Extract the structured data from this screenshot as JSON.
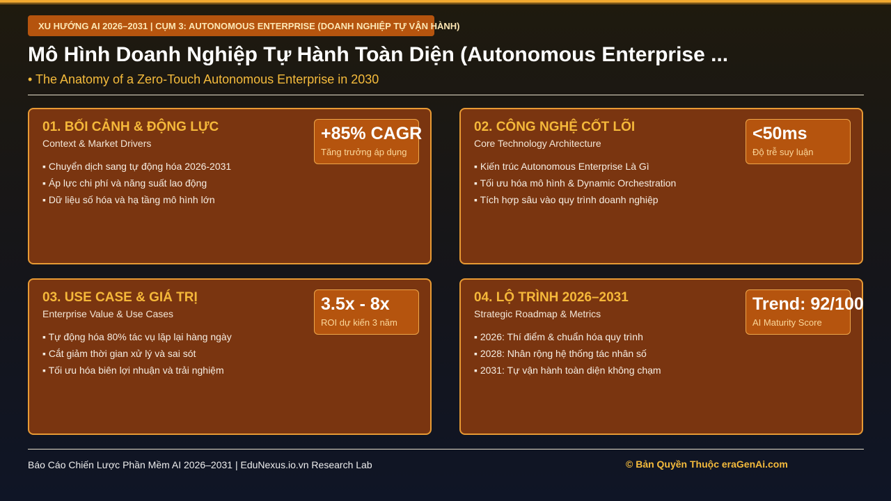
{
  "header": {
    "tag": "XU HƯỚNG AI 2026–2031 | CỤM 3: AUTONOMOUS ENTERPRISE (DOANH NGHIỆP TỰ VẬN HÀNH)",
    "title": "Mô Hình Doanh Nghiệp Tự Hành Toàn Diện (Autonomous Enterprise ...",
    "subtitle": "• The Anatomy of a Zero-Touch Autonomous Enterprise in 2030"
  },
  "cards": [
    {
      "title": "01. BỐI CẢNH & ĐỘNG LỰC",
      "subtitle": "Context & Market Drivers",
      "bullets": [
        "▪ Chuyển dịch sang tự động hóa 2026-2031",
        "▪ Áp lực chi phí và năng suất lao động",
        "▪ Dữ liệu số hóa và hạ tầng mô hình lớn"
      ],
      "metric_value": "+85% CAGR",
      "metric_label": "Tăng trưởng áp dụng"
    },
    {
      "title": "02. CÔNG NGHỆ CỐT LÕI",
      "subtitle": "Core Technology Architecture",
      "bullets": [
        "▪ Kiến trúc Autonomous Enterprise Là Gì",
        "▪ Tối ưu hóa mô hình & Dynamic Orchestration",
        "▪ Tích hợp sâu vào quy trình doanh nghiệp"
      ],
      "metric_value": "<50ms",
      "metric_label": "Độ trễ suy luận"
    },
    {
      "title": "03. USE CASE & GIÁ TRỊ",
      "subtitle": "Enterprise Value & Use Cases",
      "bullets": [
        "▪ Tự động hóa 80% tác vụ lặp lại hàng ngày",
        "▪ Cắt giảm thời gian xử lý và sai sót",
        "▪ Tối ưu hóa biên lợi nhuận và trải nghiệm"
      ],
      "metric_value": "3.5x - 8x",
      "metric_label": "ROI dự kiến 3 năm"
    },
    {
      "title": "04. LỘ TRÌNH 2026–2031",
      "subtitle": "Strategic Roadmap & Metrics",
      "bullets": [
        "▪ 2026: Thí điểm & chuẩn hóa quy trình",
        "▪ 2028: Nhân rộng hệ thống tác nhân số",
        "▪ 2031: Tự vận hành toàn diện không chạm"
      ],
      "metric_value": "Trend: 92/100",
      "metric_label": "AI Maturity Score"
    }
  ],
  "footer": {
    "left": "Báo Cáo Chiến Lược Phần Mềm AI 2026–2031 | EduNexus.io.vn Research Lab",
    "right": "© Bản Quyền Thuộc eraGenAi.com"
  },
  "colors": {
    "accent": "#f0a830",
    "card_bg": "#7a3510",
    "card_border": "#e89a34",
    "badge_bg": "#b5540e",
    "heading_gold": "#f5b83a"
  }
}
